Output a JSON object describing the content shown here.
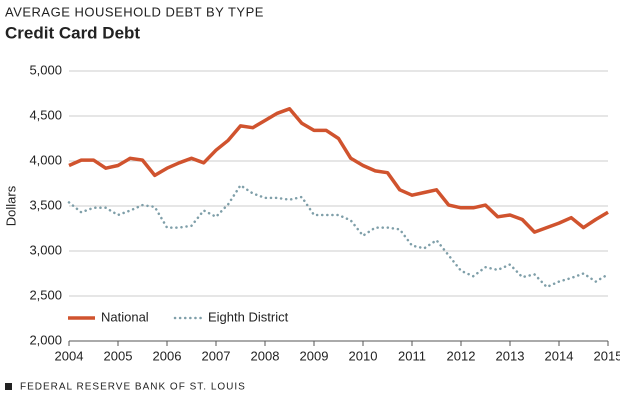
{
  "chart_data": {
    "type": "line",
    "title": "AVERAGE HOUSEHOLD DEBT BY TYPE",
    "subtitle": "Credit Card Debt",
    "y_label": "Dollars",
    "source": "FEDERAL RESERVE BANK OF ST. LOUIS",
    "x": [
      2004,
      2004.25,
      2004.5,
      2004.75,
      2005,
      2005.25,
      2005.5,
      2005.75,
      2006,
      2006.25,
      2006.5,
      2006.75,
      2007,
      2007.25,
      2007.5,
      2007.75,
      2008,
      2008.25,
      2008.5,
      2008.75,
      2009,
      2009.25,
      2009.5,
      2009.75,
      2010,
      2010.25,
      2010.5,
      2010.75,
      2011,
      2011.25,
      2011.5,
      2011.75,
      2012,
      2012.25,
      2012.5,
      2012.75,
      2013,
      2013.25,
      2013.5,
      2013.75,
      2014,
      2014.25,
      2014.5,
      2014.75,
      2015
    ],
    "series": [
      {
        "name": "National",
        "color": "#d0532e",
        "dash": false,
        "values": [
          3950,
          4010,
          4010,
          3920,
          3950,
          4030,
          4010,
          3840,
          3920,
          3980,
          4030,
          3980,
          4120,
          4230,
          4390,
          4370,
          4450,
          4530,
          4580,
          4420,
          4340,
          4340,
          4250,
          4030,
          3950,
          3890,
          3870,
          3680,
          3620,
          3650,
          3680,
          3510,
          3480,
          3480,
          3510,
          3380,
          3400,
          3350,
          3210,
          3260,
          3310,
          3370,
          3260,
          3350,
          3430
        ]
      },
      {
        "name": "Eighth District",
        "color": "#7f9fa9",
        "dash": true,
        "values": [
          3540,
          3430,
          3480,
          3480,
          3400,
          3450,
          3510,
          3490,
          3260,
          3260,
          3280,
          3450,
          3380,
          3520,
          3730,
          3640,
          3590,
          3590,
          3570,
          3600,
          3400,
          3400,
          3400,
          3340,
          3170,
          3260,
          3260,
          3240,
          3060,
          3030,
          3120,
          2950,
          2780,
          2720,
          2820,
          2790,
          2850,
          2710,
          2740,
          2600,
          2660,
          2700,
          2750,
          2660,
          2740
        ]
      }
    ],
    "xlim": [
      2004,
      2015
    ],
    "xticks": [
      2004,
      2005,
      2006,
      2007,
      2008,
      2009,
      2010,
      2011,
      2012,
      2013,
      2014,
      2015
    ],
    "ylim": [
      2000,
      5000
    ],
    "yticks": [
      {
        "value": 2000,
        "label": "2,000"
      },
      {
        "value": 2500,
        "label": "2,500"
      },
      {
        "value": 3000,
        "label": "3,000"
      },
      {
        "value": 3500,
        "label": "3,500"
      },
      {
        "value": 4000,
        "label": "4,000"
      },
      {
        "value": 4500,
        "label": "4,500"
      },
      {
        "value": 5000,
        "label": "5,000"
      }
    ],
    "grid": true,
    "legend": "lower left"
  }
}
